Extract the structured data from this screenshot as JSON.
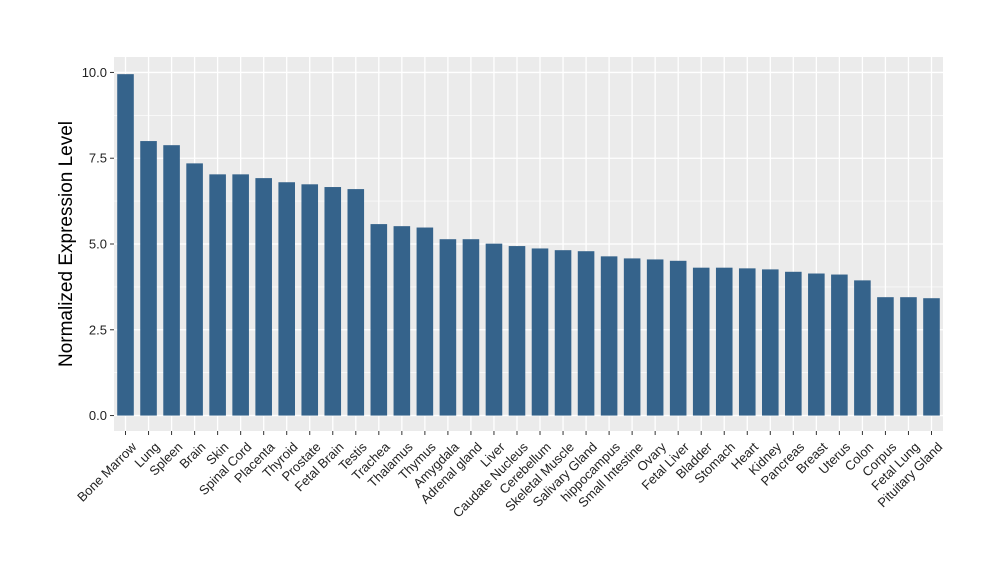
{
  "chart_data": {
    "type": "bar",
    "title": "",
    "xlabel": "",
    "ylabel": "Normalized Expression Level",
    "ylim": [
      -0.45,
      10.45
    ],
    "yticks": [
      0.0,
      2.5,
      5.0,
      7.5,
      10.0
    ],
    "ytick_labels": [
      "0.0",
      "2.5",
      "5.0",
      "7.5",
      "10.0"
    ],
    "grid": true,
    "bar_color": "#35638b",
    "panel_color": "#ebebeb",
    "grid_color": "#ffffff",
    "categories": [
      "Bone Marrow",
      "Lung",
      "Spleen",
      "Brain",
      "Skin",
      "Spinal Cord",
      "Placenta",
      "Thyroid",
      "Prostate",
      "Fetal Brain",
      "Testis",
      "Trachea",
      "Thalamus",
      "Thymus",
      "Amygdala",
      "Adrenal gland",
      "Liver",
      "Caudate Nucleus",
      "Cerebellum",
      "Skeletal Muscle",
      "Salivary Gland",
      "hippocampus",
      "Small Intestine",
      "Ovary",
      "Fetal Liver",
      "Bladder",
      "Stomach",
      "Heart",
      "Kidney",
      "Pancreas",
      "Breast",
      "Uterus",
      "Colon",
      "Corpus",
      "Fetal Lung",
      "Pituitary Gland"
    ],
    "values": [
      9.95,
      8.0,
      7.88,
      7.35,
      7.03,
      7.03,
      6.92,
      6.8,
      6.74,
      6.66,
      6.6,
      5.58,
      5.52,
      5.48,
      5.14,
      5.14,
      5.01,
      4.94,
      4.87,
      4.82,
      4.79,
      4.64,
      4.58,
      4.55,
      4.51,
      4.31,
      4.31,
      4.29,
      4.26,
      4.19,
      4.14,
      4.11,
      3.94,
      3.45,
      3.45,
      3.42
    ]
  }
}
